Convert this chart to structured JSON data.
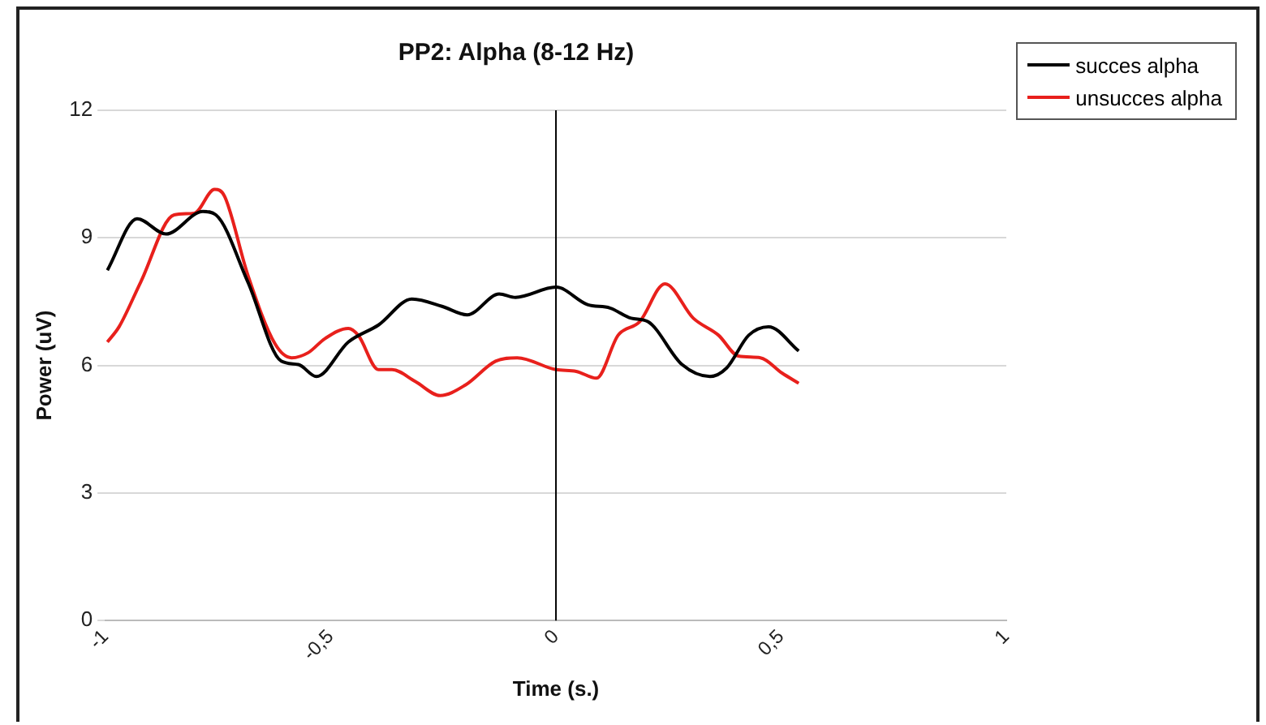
{
  "chart_data": {
    "type": "line",
    "title": "PP2: Alpha (8-12 Hz)",
    "xlabel": "Time (s.)",
    "ylabel": "Power (uV)",
    "xlim": [
      -1,
      1
    ],
    "xticks": [
      -1,
      {
        "value": -0.5,
        "label": "-0,5"
      },
      0,
      {
        "value": 0.5,
        "label": "0,5"
      },
      1
    ],
    "ylim": [
      0,
      12
    ],
    "yticks": [
      0,
      3,
      6,
      9,
      12
    ],
    "grid": "y",
    "legend": "top right",
    "marker": "none",
    "line_style": "solid",
    "ref_lines": [
      {
        "axis": "x",
        "value": 0,
        "color": "#000000"
      }
    ],
    "series": [
      {
        "name": "succes alpha",
        "color": "#000000",
        "x": [
          -0.996,
          -0.93,
          -0.866,
          -0.784,
          -0.755,
          -0.684,
          -0.61,
          -0.572,
          -0.532,
          -0.461,
          -0.394,
          -0.32,
          -0.253,
          -0.197,
          -0.126,
          -0.09,
          0,
          0.07,
          0.12,
          0.167,
          0.204,
          0.28,
          0.342,
          0.379,
          0.428,
          0.472,
          0.539
        ],
        "values": [
          8.24,
          9.45,
          9.09,
          9.62,
          9.54,
          7.96,
          6.1,
          6.02,
          5.74,
          6.55,
          6.95,
          7.56,
          7.39,
          7.19,
          7.68,
          7.6,
          7.84,
          7.43,
          7.35,
          7.11,
          7.03,
          6.02,
          5.74,
          5.94,
          6.71,
          6.91,
          6.34
        ]
      },
      {
        "name": "unsucces alpha",
        "color": "#e8201c",
        "x": [
          -0.996,
          -0.97,
          -0.922,
          -0.848,
          -0.803,
          -0.758,
          -0.736,
          -0.684,
          -0.624,
          -0.587,
          -0.55,
          -0.513,
          -0.461,
          -0.439,
          -0.394,
          -0.364,
          -0.312,
          -0.257,
          -0.201,
          -0.134,
          -0.086,
          0,
          0.045,
          0.09,
          0.138,
          0.186,
          0.242,
          0.305,
          0.361,
          0.405,
          0.454,
          0.502,
          0.539
        ],
        "values": [
          6.55,
          6.91,
          7.96,
          9.54,
          9.58,
          10.14,
          9.98,
          8.12,
          6.51,
          6.18,
          6.3,
          6.63,
          6.87,
          6.71,
          5.9,
          5.9,
          5.62,
          5.29,
          5.54,
          6.1,
          6.18,
          5.9,
          5.86,
          5.7,
          6.71,
          7.03,
          7.92,
          7.11,
          6.71,
          6.22,
          6.18,
          5.82,
          5.58
        ]
      }
    ]
  }
}
